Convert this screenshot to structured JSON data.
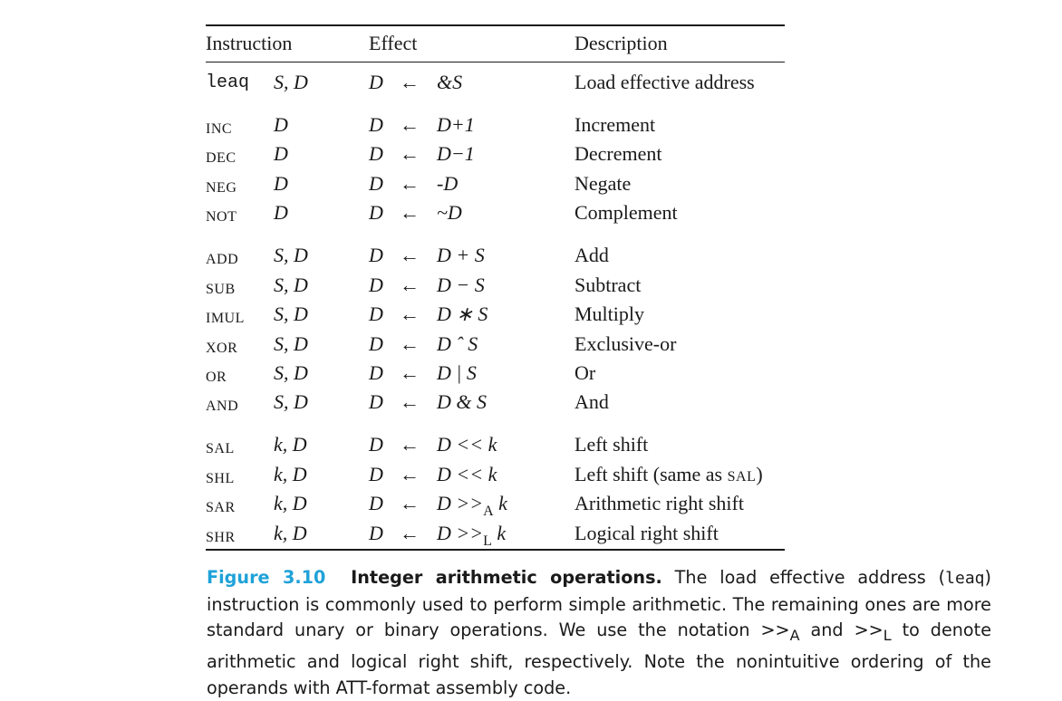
{
  "header": {
    "instruction": "Instruction",
    "effect": "Effect",
    "description": "Description"
  },
  "rows": [
    {
      "instr": "leaq",
      "ops": "S, D",
      "dest": "D",
      "arrow": "←",
      "expr": "&S",
      "desc": "Load effective address"
    },
    {
      "instr": "INC",
      "ops": "D",
      "dest": "D",
      "arrow": "←",
      "expr": "D+1",
      "desc": "Increment"
    },
    {
      "instr": "DEC",
      "ops": "D",
      "dest": "D",
      "arrow": "←",
      "expr": "D−1",
      "desc": "Decrement"
    },
    {
      "instr": "NEG",
      "ops": "D",
      "dest": "D",
      "arrow": "←",
      "expr": "-D",
      "desc": "Negate"
    },
    {
      "instr": "NOT",
      "ops": "D",
      "dest": "D",
      "arrow": "←",
      "expr": "~D",
      "desc": "Complement"
    },
    {
      "instr": "ADD",
      "ops": "S, D",
      "dest": "D",
      "arrow": "←",
      "expr": "D + S",
      "desc": "Add"
    },
    {
      "instr": "SUB",
      "ops": "S, D",
      "dest": "D",
      "arrow": "←",
      "expr": "D − S",
      "desc": "Subtract"
    },
    {
      "instr": "IMUL",
      "ops": "S, D",
      "dest": "D",
      "arrow": "←",
      "expr": "D ∗ S",
      "desc": "Multiply"
    },
    {
      "instr": "XOR",
      "ops": "S, D",
      "dest": "D",
      "arrow": "←",
      "expr": "D ˆ S",
      "desc": "Exclusive-or"
    },
    {
      "instr": "OR",
      "ops": "S, D",
      "dest": "D",
      "arrow": "←",
      "expr": "D | S",
      "desc": "Or"
    },
    {
      "instr": "AND",
      "ops": "S, D",
      "dest": "D",
      "arrow": "←",
      "expr": "D & S",
      "desc": "And"
    },
    {
      "instr": "SAL",
      "ops": "k, D",
      "dest": "D",
      "arrow": "←",
      "expr": "D << k",
      "desc": "Left shift"
    },
    {
      "instr": "SHL",
      "ops": "k, D",
      "dest": "D",
      "arrow": "←",
      "expr": "D << k",
      "desc_pre": "Left shift (same as ",
      "desc_sc": "SAL",
      "desc_post": ")"
    },
    {
      "instr": "SAR",
      "ops": "k, D",
      "dest": "D",
      "arrow": "←",
      "expr_pre": "D >>",
      "expr_sub": "A",
      "expr_post": " k",
      "desc": "Arithmetic right shift"
    },
    {
      "instr": "SHR",
      "ops": "k, D",
      "dest": "D",
      "arrow": "←",
      "expr_pre": "D >>",
      "expr_sub": "L",
      "expr_post": " k",
      "desc": "Logical right shift"
    }
  ],
  "caption": {
    "label": "Figure 3.10",
    "title": "Integer arithmetic operations.",
    "t1": " The load effective address (",
    "code": "leaq",
    "t2": ") instruction is commonly used to perform simple arithmetic. The remaining ones are more standard unary or binary operations. We use the notation ",
    "n1": ">>",
    "s1": "A",
    "t3": " and ",
    "n2": ">>",
    "s2": "L",
    "t4": " to denote arithmetic and logical right shift, respectively. Note the nonintuitive ordering of the operands with ATT-format assembly code."
  }
}
